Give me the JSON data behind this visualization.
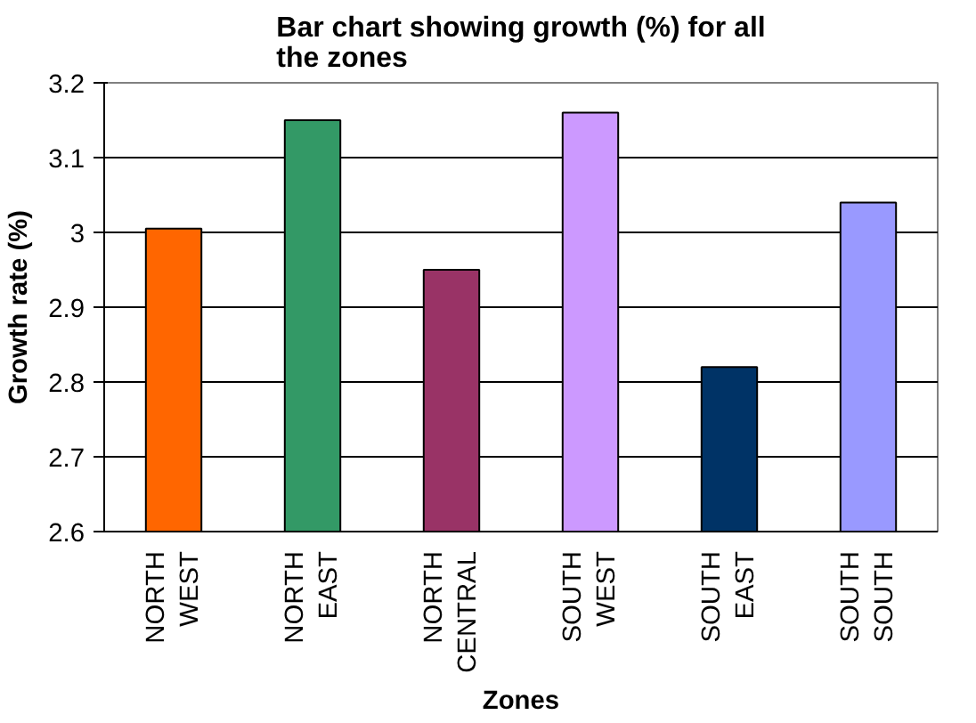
{
  "chart_data": {
    "type": "bar",
    "title": "Bar chart showing growth (%) for all the zones",
    "xlabel": "Zones",
    "ylabel": "Growth rate (%)",
    "categories": [
      "NORTH WEST",
      "NORTH EAST",
      "NORTH CENTRAL",
      "SOUTH WEST",
      "SOUTH EAST",
      "SOUTH SOUTH"
    ],
    "values": [
      3.005,
      3.15,
      2.95,
      3.16,
      2.82,
      3.04
    ],
    "colors": [
      "#ff6600",
      "#339966",
      "#993366",
      "#cc99ff",
      "#003366",
      "#9999ff"
    ],
    "ylim": [
      2.6,
      3.2
    ],
    "yticks": [
      2.6,
      2.7,
      2.8,
      2.9,
      3,
      3.1,
      3.2
    ],
    "grid": "y"
  }
}
